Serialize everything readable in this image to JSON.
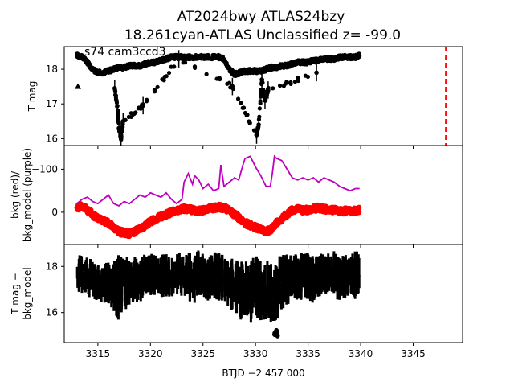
{
  "figure": {
    "title_line1": "AT2024bwy  ATLAS24bzy",
    "title_line2": "18.261cyan-ATLAS Unclassified z= -99.0",
    "panel_annotation": "s74 cam3ccd3",
    "xlabel": "BTJD −2 457 000"
  },
  "colors": {
    "lc": "#000000",
    "bkg": "#ff0000",
    "bkg_model": "#bf00bf",
    "marker": "#ff0000"
  },
  "chart_data": [
    {
      "type": "scatter",
      "panel": "top",
      "ylabel": "T mag",
      "y_inverted": true,
      "xlim": [
        3311.8,
        3349.7
      ],
      "ylim": [
        18.65,
        15.8
      ],
      "xticks": [
        3315,
        3320,
        3325,
        3330,
        3335,
        3340,
        3345
      ],
      "yticks": [
        16,
        17,
        18
      ],
      "ytick_labels": [
        "16",
        "17",
        "18"
      ],
      "series": [
        {
          "style": "points",
          "x": [
            3313.0,
            3313.5,
            3314.0,
            3314.5,
            3315.0,
            3315.5,
            3316.0,
            3316.5,
            3317.0,
            3317.5,
            3318.0,
            3318.5,
            3319.0,
            3319.5,
            3320.0,
            3320.5,
            3321.0,
            3321.5,
            3322.0,
            3322.5,
            3323.0,
            3323.5,
            3324.0,
            3324.5,
            3325.0,
            3325.5,
            3326.0,
            3326.5,
            3327.0,
            3327.5,
            3328.0,
            3328.5,
            3329.0,
            3329.5,
            3330.0,
            3330.5,
            3331.0,
            3331.5,
            3332.0,
            3332.5,
            3333.0,
            3333.5,
            3334.0,
            3334.5,
            3335.0,
            3335.5,
            3336.0,
            3336.5,
            3337.0,
            3337.5,
            3338.0,
            3338.5,
            3339.0,
            3339.5,
            3339.9
          ],
          "y": [
            18.4,
            18.35,
            18.2,
            18.0,
            17.9,
            17.9,
            17.95,
            18.0,
            18.05,
            18.05,
            18.1,
            18.1,
            18.1,
            18.15,
            18.2,
            18.2,
            18.25,
            18.3,
            18.35,
            18.35,
            18.35,
            18.35,
            18.35,
            18.35,
            18.35,
            18.35,
            18.35,
            18.35,
            18.3,
            18.0,
            17.85,
            17.9,
            17.95,
            17.95,
            17.95,
            17.95,
            18.0,
            18.05,
            18.05,
            18.1,
            18.1,
            18.15,
            18.2,
            18.2,
            18.2,
            18.25,
            18.25,
            18.3,
            18.3,
            18.3,
            18.35,
            18.35,
            18.35,
            18.35,
            18.4
          ]
        },
        {
          "style": "points",
          "x": [
            3316.6,
            3316.9,
            3317.0,
            3317.2,
            3317.4,
            3319.3,
            3322.7,
            3327.8,
            3330.1,
            3330.3,
            3330.6,
            3330.9,
            3331.2,
            3335.8
          ],
          "y": [
            17.45,
            16.8,
            16.3,
            16.0,
            16.5,
            16.95,
            18.3,
            17.5,
            16.1,
            16.4,
            17.7,
            17.1,
            17.4,
            17.9
          ]
        },
        {
          "style": "triangle",
          "x": [
            3313.1
          ],
          "y": [
            17.5
          ]
        }
      ],
      "vline": {
        "x": 3348.1,
        "style": "dashed"
      }
    },
    {
      "type": "line",
      "panel": "middle",
      "ylabel": "bkg (red)/ bkg_model (purple)",
      "xlim": [
        3311.8,
        3349.7
      ],
      "ylim": [
        -155,
        75
      ],
      "xticks": [
        3315,
        3320,
        3325,
        3330,
        3335,
        3340,
        3345
      ],
      "yticks": [
        0,
        -100
      ],
      "ytick_labels": [
        "0",
        "−100"
      ],
      "series": [
        {
          "style": "points",
          "x": [
            3313.0,
            3313.5,
            3314.0,
            3314.5,
            3315.0,
            3315.5,
            3316.0,
            3316.5,
            3317.0,
            3317.5,
            3318.0,
            3318.5,
            3319.0,
            3319.5,
            3320.0,
            3320.5,
            3321.0,
            3321.5,
            3322.0,
            3322.5,
            3323.0,
            3323.5,
            3324.0,
            3324.5,
            3325.0,
            3325.5,
            3326.0,
            3326.5,
            3327.0,
            3327.5,
            3328.0,
            3328.5,
            3329.0,
            3329.5,
            3330.0,
            3330.5,
            3331.0,
            3331.5,
            3332.0,
            3332.5,
            3333.0,
            3333.5,
            3334.0,
            3334.5,
            3335.0,
            3335.5,
            3336.0,
            3336.5,
            3337.0,
            3337.5,
            3338.0,
            3338.5,
            3339.0,
            3339.5,
            3339.9
          ],
          "y": [
            -10,
            -15,
            -5,
            5,
            15,
            20,
            25,
            35,
            45,
            48,
            50,
            45,
            40,
            30,
            22,
            15,
            10,
            5,
            0,
            -5,
            -8,
            -8,
            -5,
            -3,
            -5,
            -8,
            -10,
            -12,
            -10,
            -5,
            5,
            15,
            25,
            30,
            35,
            40,
            45,
            40,
            25,
            15,
            5,
            -5,
            -8,
            -5,
            -5,
            -8,
            -10,
            -8,
            -5,
            -5,
            -3,
            -3,
            -3,
            -3,
            -5
          ]
        },
        {
          "style": "line",
          "x": [
            3313.0,
            3313.5,
            3314.0,
            3314.5,
            3315.0,
            3315.5,
            3316.0,
            3316.5,
            3317.0,
            3317.5,
            3318.0,
            3318.5,
            3319.0,
            3319.5,
            3320.0,
            3320.5,
            3321.0,
            3321.5,
            3322.0,
            3322.5,
            3323.0,
            3323.2,
            3323.6,
            3324.0,
            3324.2,
            3324.6,
            3325.0,
            3325.5,
            3326.0,
            3326.5,
            3326.7,
            3327.0,
            3327.5,
            3328.0,
            3328.4,
            3328.8,
            3329.0,
            3329.5,
            3330.0,
            3330.5,
            3331.0,
            3331.4,
            3331.6,
            3331.8,
            3332.0,
            3332.5,
            3333.0,
            3333.5,
            3334.0,
            3334.5,
            3335.0,
            3335.5,
            3336.0,
            3336.5,
            3337.0,
            3337.5,
            3338.0,
            3338.5,
            3339.0,
            3339.5,
            3339.9
          ],
          "y": [
            -20,
            -30,
            -35,
            -25,
            -20,
            -30,
            -40,
            -20,
            -15,
            -25,
            -20,
            -30,
            -40,
            -35,
            -45,
            -40,
            -35,
            -45,
            -30,
            -20,
            -30,
            -70,
            -90,
            -65,
            -85,
            -75,
            -55,
            -65,
            -50,
            -55,
            -110,
            -60,
            -70,
            -80,
            -75,
            -110,
            -125,
            -130,
            -105,
            -85,
            -60,
            -60,
            -90,
            -130,
            -125,
            -120,
            -100,
            -80,
            -75,
            -80,
            -75,
            -80,
            -70,
            -80,
            -75,
            -70,
            -60,
            -55,
            -50,
            -55,
            -55
          ]
        }
      ]
    },
    {
      "type": "scatter",
      "panel": "bottom",
      "ylabel": "T mag − bkg_model",
      "y_inverted": true,
      "xlim": [
        3311.8,
        3349.7
      ],
      "ylim": [
        18.95,
        14.7
      ],
      "xticks": [
        3315,
        3320,
        3325,
        3330,
        3335,
        3340,
        3345
      ],
      "xtick_labels": [
        "3315",
        "3320",
        "3325",
        "3330",
        "3335",
        "3340",
        "3345"
      ],
      "yticks": [
        16,
        18
      ],
      "ytick_labels": [
        "16",
        "18"
      ],
      "series": [
        {
          "style": "band",
          "x": [
            3313.0,
            3313.5,
            3314.0,
            3314.5,
            3315.0,
            3315.5,
            3316.0,
            3316.5,
            3317.0,
            3317.5,
            3318.0,
            3318.5,
            3319.0,
            3319.5,
            3320.0,
            3320.5,
            3321.0,
            3321.5,
            3322.0,
            3322.5,
            3323.0,
            3323.5,
            3324.0,
            3324.5,
            3325.0,
            3325.5,
            3326.0,
            3326.5,
            3327.0,
            3327.5,
            3328.0,
            3328.5,
            3329.0,
            3329.5,
            3330.0,
            3330.5,
            3331.0,
            3331.5,
            3332.0,
            3332.5,
            3333.0,
            3333.5,
            3334.0,
            3334.5,
            3335.0,
            3335.5,
            3336.0,
            3336.5,
            3337.0,
            3337.5,
            3338.0,
            3338.5,
            3339.0,
            3339.5,
            3339.9
          ],
          "y_upper": [
            16.9,
            16.8,
            16.7,
            16.6,
            16.5,
            16.4,
            16.3,
            16.0,
            15.6,
            16.0,
            16.3,
            16.5,
            16.4,
            16.7,
            16.6,
            16.5,
            16.6,
            16.7,
            16.6,
            16.8,
            16.7,
            16.6,
            16.3,
            16.5,
            16.7,
            16.5,
            16.6,
            16.5,
            16.3,
            16.1,
            15.9,
            15.7,
            15.6,
            15.5,
            15.5,
            15.6,
            15.7,
            15.5,
            15.6,
            16.0,
            16.3,
            16.5,
            16.4,
            16.6,
            16.5,
            16.4,
            16.6,
            16.7,
            16.8,
            16.6,
            16.5,
            16.6,
            16.7,
            16.5,
            16.9
          ],
          "y_lower": [
            18.6,
            18.5,
            18.4,
            18.3,
            18.2,
            18.1,
            18.2,
            18.4,
            18.5,
            18.4,
            18.5,
            18.4,
            18.6,
            18.5,
            18.7,
            18.6,
            18.5,
            18.6,
            18.5,
            18.6,
            18.7,
            18.6,
            18.6,
            18.7,
            18.6,
            18.5,
            18.6,
            18.7,
            18.6,
            18.4,
            18.3,
            18.2,
            18.3,
            18.4,
            18.5,
            18.3,
            18.2,
            18.3,
            18.4,
            18.5,
            18.6,
            18.5,
            18.6,
            18.7,
            18.6,
            18.5,
            18.6,
            18.5,
            18.6,
            18.7,
            18.6,
            18.5,
            18.6,
            18.7,
            18.6
          ]
        },
        {
          "style": "points",
          "x": [
            3331.8,
            3332.0,
            3332.1
          ],
          "y": [
            15.05,
            15.2,
            15.0
          ]
        }
      ]
    }
  ]
}
